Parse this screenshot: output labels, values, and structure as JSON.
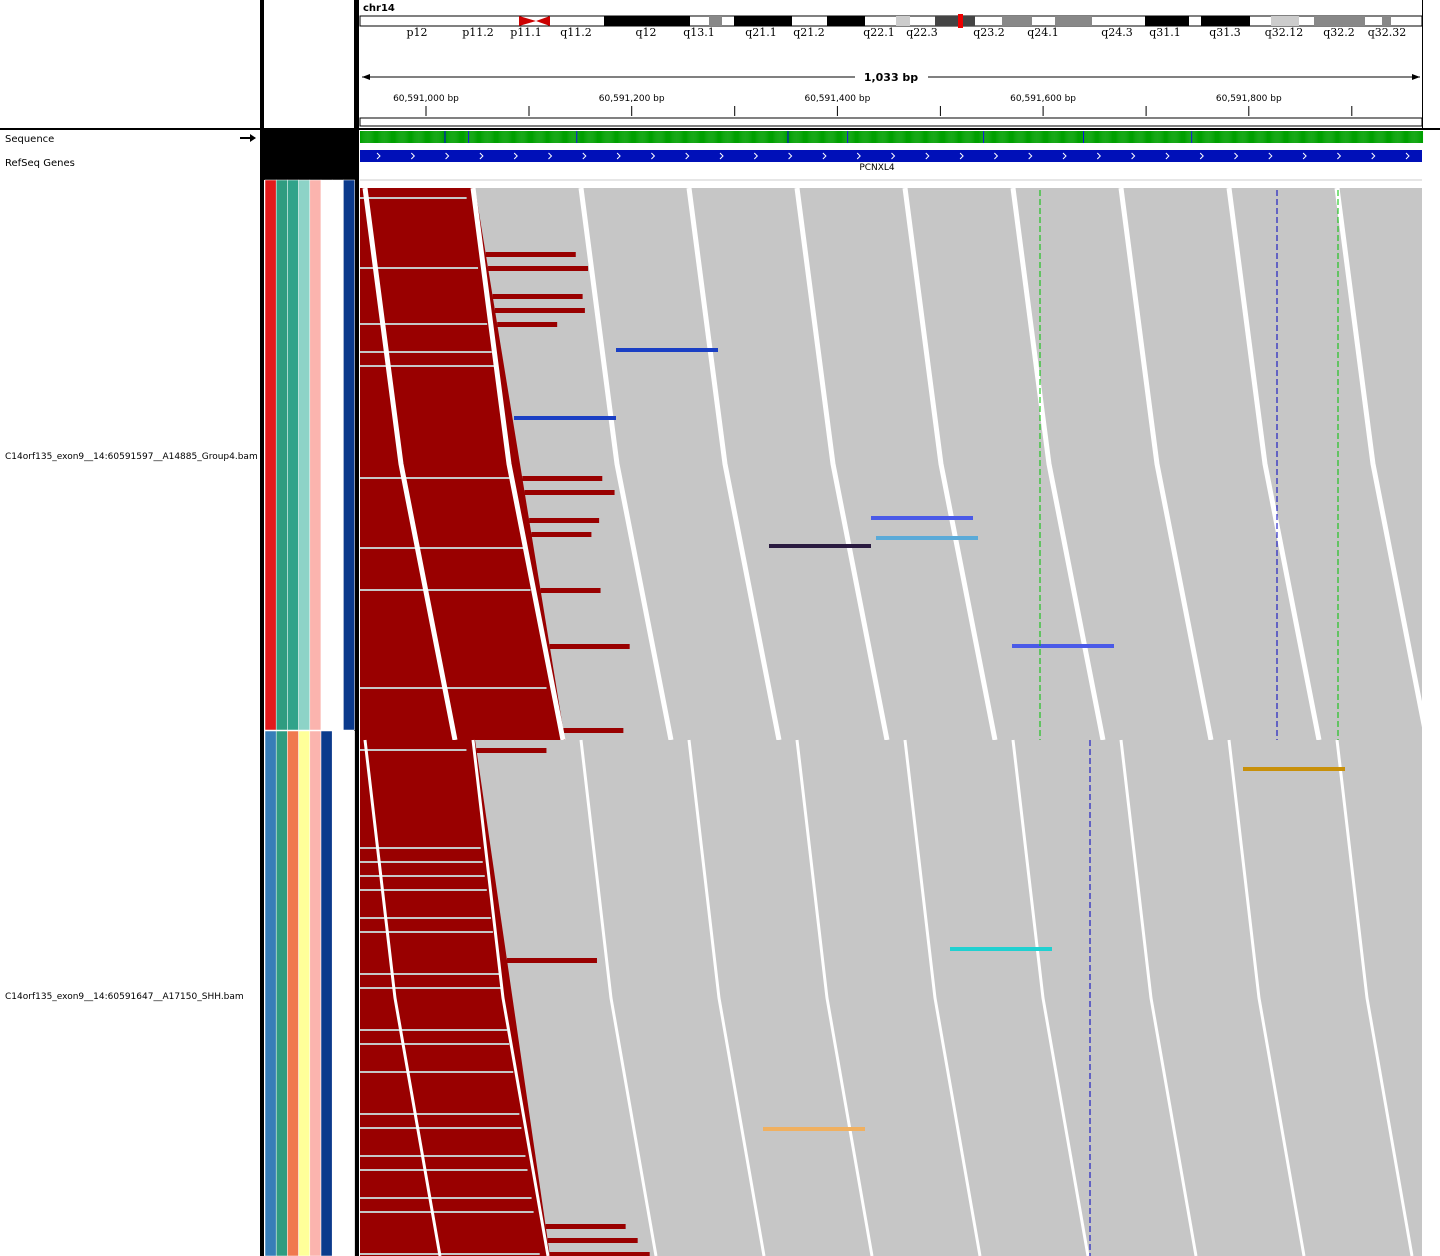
{
  "header": {
    "chromosome": "chr14",
    "bands": [
      "p12",
      "p11.2",
      "p11.1",
      "q11.2",
      "q12",
      "q13.1",
      "q21.1",
      "q21.2",
      "q22.1",
      "q22.3",
      "q23.2",
      "q24.1",
      "q24.3",
      "q31.1",
      "q31.3",
      "q32.12",
      "q32.2",
      "q32.32"
    ],
    "span": "1,033 bp",
    "positions": [
      "60,591,000 bp",
      "60,591,200 bp",
      "60,591,400 bp",
      "60,591,600 bp",
      "60,591,800 bp"
    ]
  },
  "tracks": {
    "sequence": "Sequence",
    "genes": "RefSeq Genes",
    "gene": "PCNXL4",
    "bam": [
      "C14orf135_exon9__14:60591597__A14885_Group4.bam",
      "C14orf135_exon9__14:60591647__A17150_SHH.bam"
    ]
  }
}
